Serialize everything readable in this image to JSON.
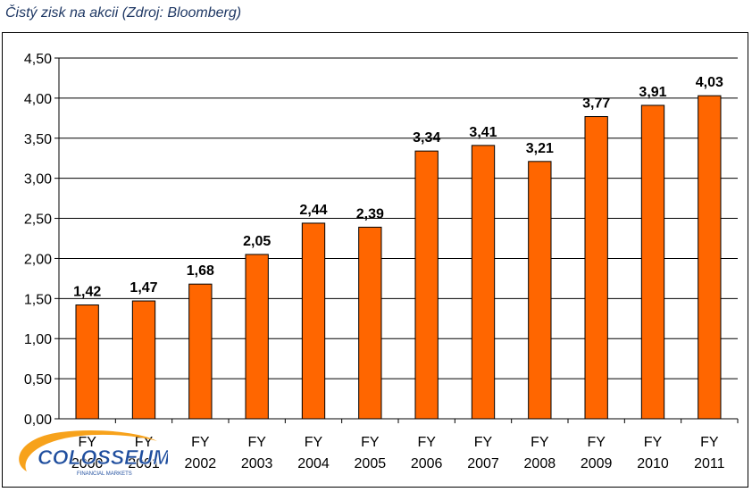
{
  "header": {
    "title": "Čistý zisk na akcii (Zdroj: Bloomberg)"
  },
  "chart_data": {
    "type": "bar",
    "title": "Čistý zisk na akcii (Zdroj: Bloomberg)",
    "categories": [
      [
        "FY",
        "2000"
      ],
      [
        "FY",
        "2001"
      ],
      [
        "FY",
        "2002"
      ],
      [
        "FY",
        "2003"
      ],
      [
        "FY",
        "2004"
      ],
      [
        "FY",
        "2005"
      ],
      [
        "FY",
        "2006"
      ],
      [
        "FY",
        "2007"
      ],
      [
        "FY",
        "2008"
      ],
      [
        "FY",
        "2009"
      ],
      [
        "FY",
        "2010"
      ],
      [
        "FY",
        "2011"
      ]
    ],
    "values": [
      1.42,
      1.47,
      1.68,
      2.05,
      2.44,
      2.39,
      3.34,
      3.41,
      3.21,
      3.77,
      3.91,
      4.03
    ],
    "value_labels": [
      "1,42",
      "1,47",
      "1,68",
      "2,05",
      "2,44",
      "2,39",
      "3,34",
      "3,41",
      "3,21",
      "3,77",
      "3,91",
      "4,03"
    ],
    "yticks": [
      "0,00",
      "0,50",
      "1,00",
      "1,50",
      "2,00",
      "2,50",
      "3,00",
      "3,50",
      "4,00",
      "4,50"
    ],
    "ylim": [
      0,
      4.5
    ],
    "grid": true,
    "bar_color": "#ff6600"
  },
  "logo": {
    "text": "COLOSSEUM",
    "subtext": "FINANCIAL MARKETS"
  }
}
